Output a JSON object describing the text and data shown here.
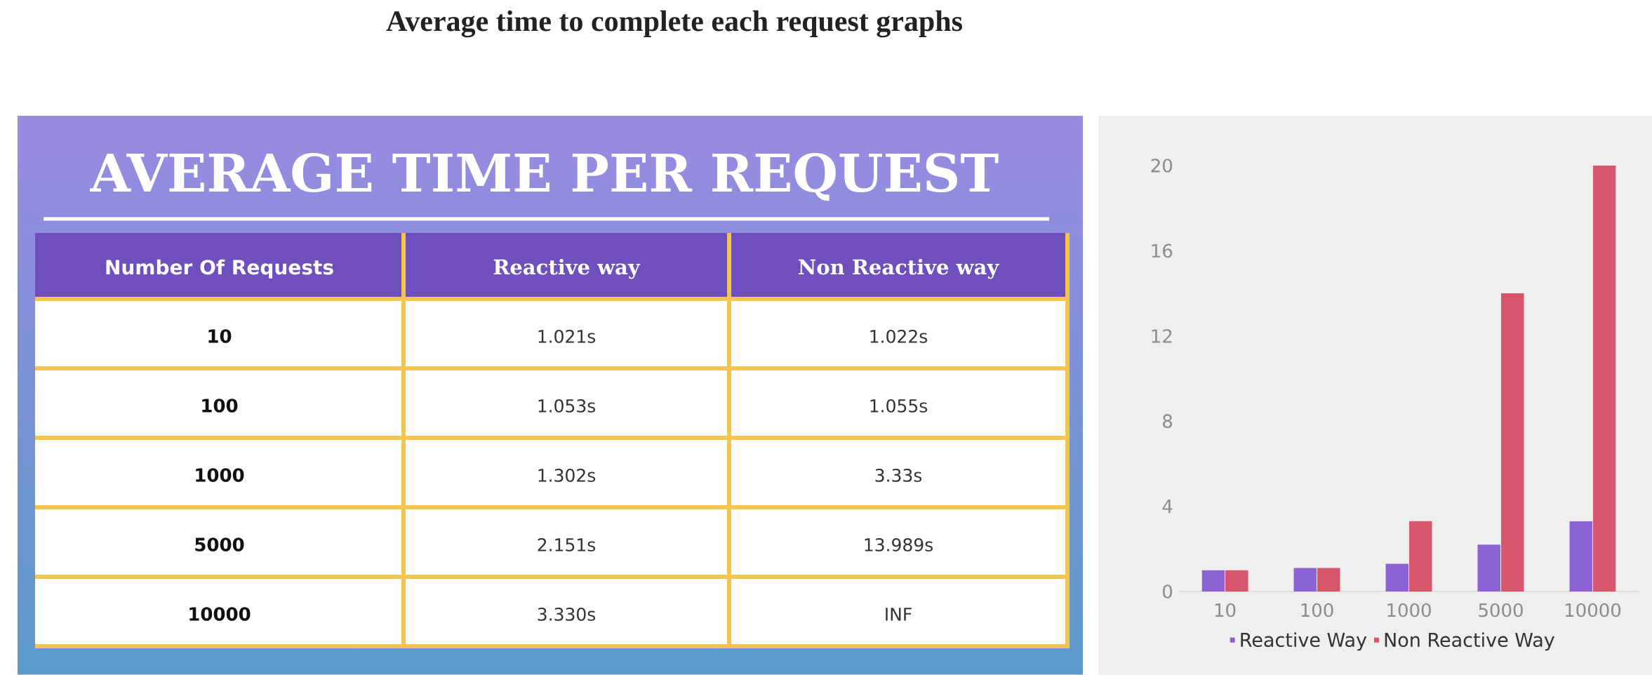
{
  "chart_data": [
    {
      "type": "other",
      "title": "Average time to complete each request graphs",
      "subtitle": "AVERAGE TIME PER REQUEST",
      "categories": [
        "Number Of Requests",
        "Reactive way",
        "Non Reactive way"
      ],
      "annotations": [
        "10",
        "1.021s",
        "1.022s",
        "100",
        "1.053s",
        "1.055s",
        "1000",
        "1.302s",
        "3.33s",
        "5000",
        "2.151s",
        "13.989s",
        "10000",
        "3.330s",
        "INF"
      ]
    },
    {
      "type": "bar",
      "categories": [
        "10",
        "100",
        "1000",
        "5000",
        "10000"
      ],
      "series": [
        {
          "name": "Reactive Way",
          "color": "#8b63d4",
          "values": [
            1.0,
            1.1,
            1.3,
            2.2,
            3.3
          ]
        },
        {
          "name": "Non Reactive Way",
          "color": "#d8566b",
          "values": [
            1.0,
            1.1,
            3.3,
            14.0,
            20.0
          ]
        }
      ],
      "ylim": [
        0,
        20
      ],
      "yticks": [
        0,
        4,
        8,
        12,
        16,
        20
      ],
      "legend": "bottom"
    }
  ]
}
